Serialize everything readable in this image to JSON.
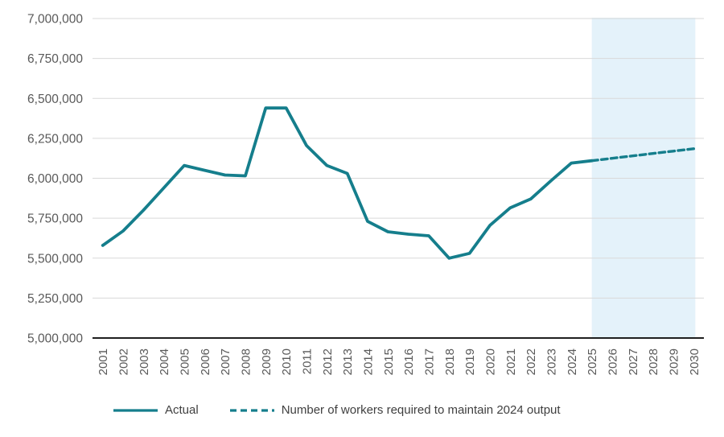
{
  "chart_data": {
    "type": "line",
    "title": "",
    "xlabel": "",
    "ylabel": "",
    "x": [
      2001,
      2002,
      2003,
      2004,
      2005,
      2006,
      2007,
      2008,
      2009,
      2010,
      2011,
      2012,
      2013,
      2014,
      2015,
      2016,
      2017,
      2018,
      2019,
      2020,
      2021,
      2022,
      2023,
      2024,
      2025,
      2026,
      2027,
      2028,
      2029,
      2030
    ],
    "x_tick_labels": [
      "2001",
      "2002",
      "2003",
      "2004",
      "2005",
      "2006",
      "2007",
      "2008",
      "2009",
      "2010",
      "2011",
      "2012",
      "2013",
      "2014",
      "2015",
      "2016",
      "2017",
      "2018",
      "2019",
      "2020",
      "2021",
      "2022",
      "2023",
      "2024",
      "2025",
      "2026",
      "2027",
      "2028",
      "2029",
      "2030"
    ],
    "ylim": [
      5000000,
      7000000
    ],
    "y_tick_values": [
      5000000,
      5250000,
      5500000,
      5750000,
      6000000,
      6250000,
      6500000,
      6750000,
      7000000
    ],
    "y_tick_labels": [
      "5,000,000",
      "5,250,000",
      "5,500,000",
      "5,750,000",
      "6,000,000",
      "6,250,000",
      "6,500,000",
      "6,750,000",
      "7,000,000"
    ],
    "grid": "horizontal",
    "legend_position": "bottom",
    "series": [
      {
        "name": "Actual",
        "style": "solid",
        "x_start": 2001,
        "values": [
          5580000,
          5670000,
          5800000,
          5940000,
          6080000,
          6050000,
          6020000,
          6015000,
          6440000,
          6440000,
          6205000,
          6080000,
          6030000,
          5730000,
          5665000,
          5650000,
          5640000,
          5500000,
          5530000,
          5705000,
          5815000,
          5870000,
          5985000,
          6095000,
          6110000
        ]
      },
      {
        "name": "Number of workers required to maintain 2024 output",
        "style": "dashed",
        "x_start": 2025,
        "values": [
          6110000,
          6125000,
          6140000,
          6155000,
          6170000,
          6185000
        ]
      }
    ],
    "forecast_band": {
      "from": 2025,
      "to": 2030
    },
    "colors": {
      "line": "#157E8C",
      "band": "#E4F2FA",
      "gridline": "#D9D9D9",
      "axis_line": "#1f1f1f",
      "tick_text": "#595959",
      "legend_text": "#3f3f3f",
      "background": "#ffffff"
    }
  }
}
